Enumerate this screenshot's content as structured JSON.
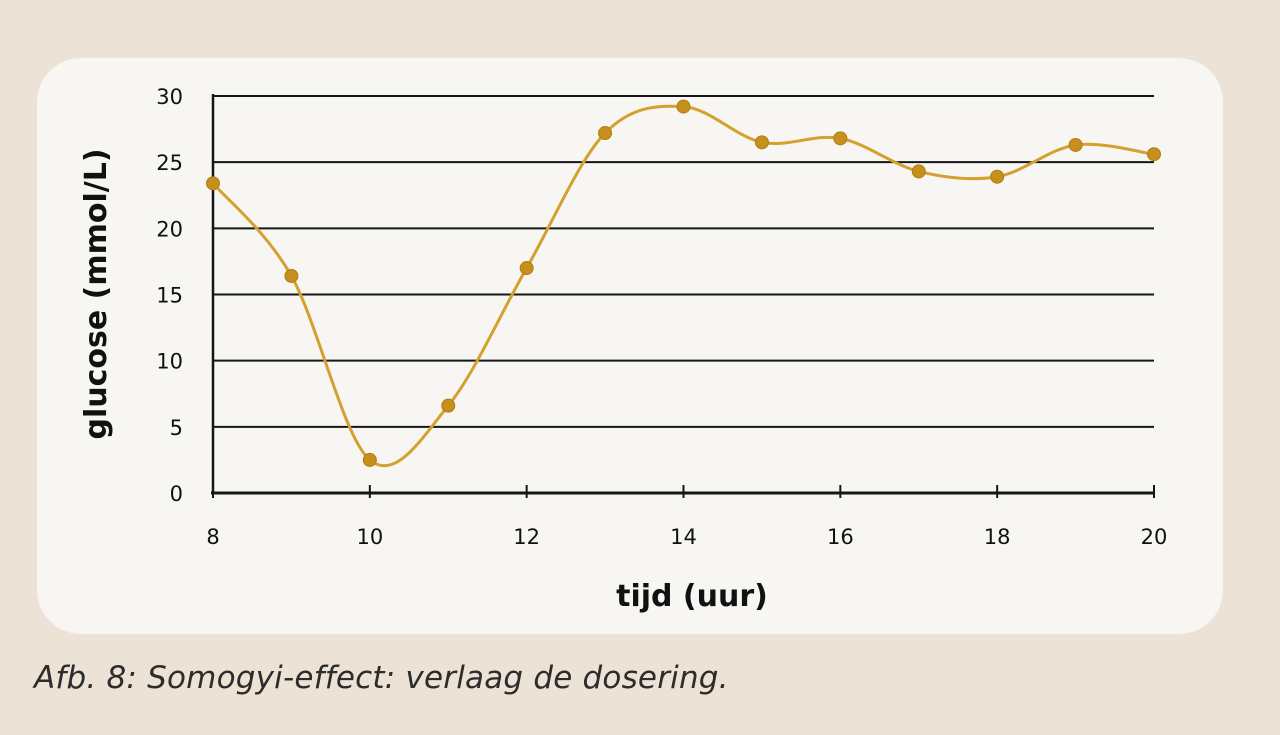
{
  "chart_data": {
    "type": "line",
    "title": "",
    "xlabel": "tijd (uur)",
    "ylabel": "glucose (mmol/L)",
    "xlim": [
      8,
      20
    ],
    "ylim": [
      0,
      30
    ],
    "x_ticks": [
      "8",
      "10",
      "12",
      "14",
      "16",
      "18",
      "20"
    ],
    "y_ticks": [
      "0",
      "5",
      "10",
      "15",
      "20",
      "25",
      "30"
    ],
    "grid": "horizontal",
    "line_style": "smooth",
    "color": "#d4a030",
    "marker_color": "#c78f1c",
    "series": [
      {
        "x": [
          8,
          9,
          10,
          11,
          12,
          13,
          14,
          15,
          16,
          17,
          18,
          19,
          20
        ],
        "y": [
          23.4,
          16.4,
          2.5,
          6.6,
          17.0,
          27.2,
          29.2,
          26.5,
          26.8,
          24.3,
          23.9,
          26.3,
          25.6
        ]
      }
    ]
  },
  "caption": "Afb. 8: Somogyi-effect: verlaag de dosering."
}
